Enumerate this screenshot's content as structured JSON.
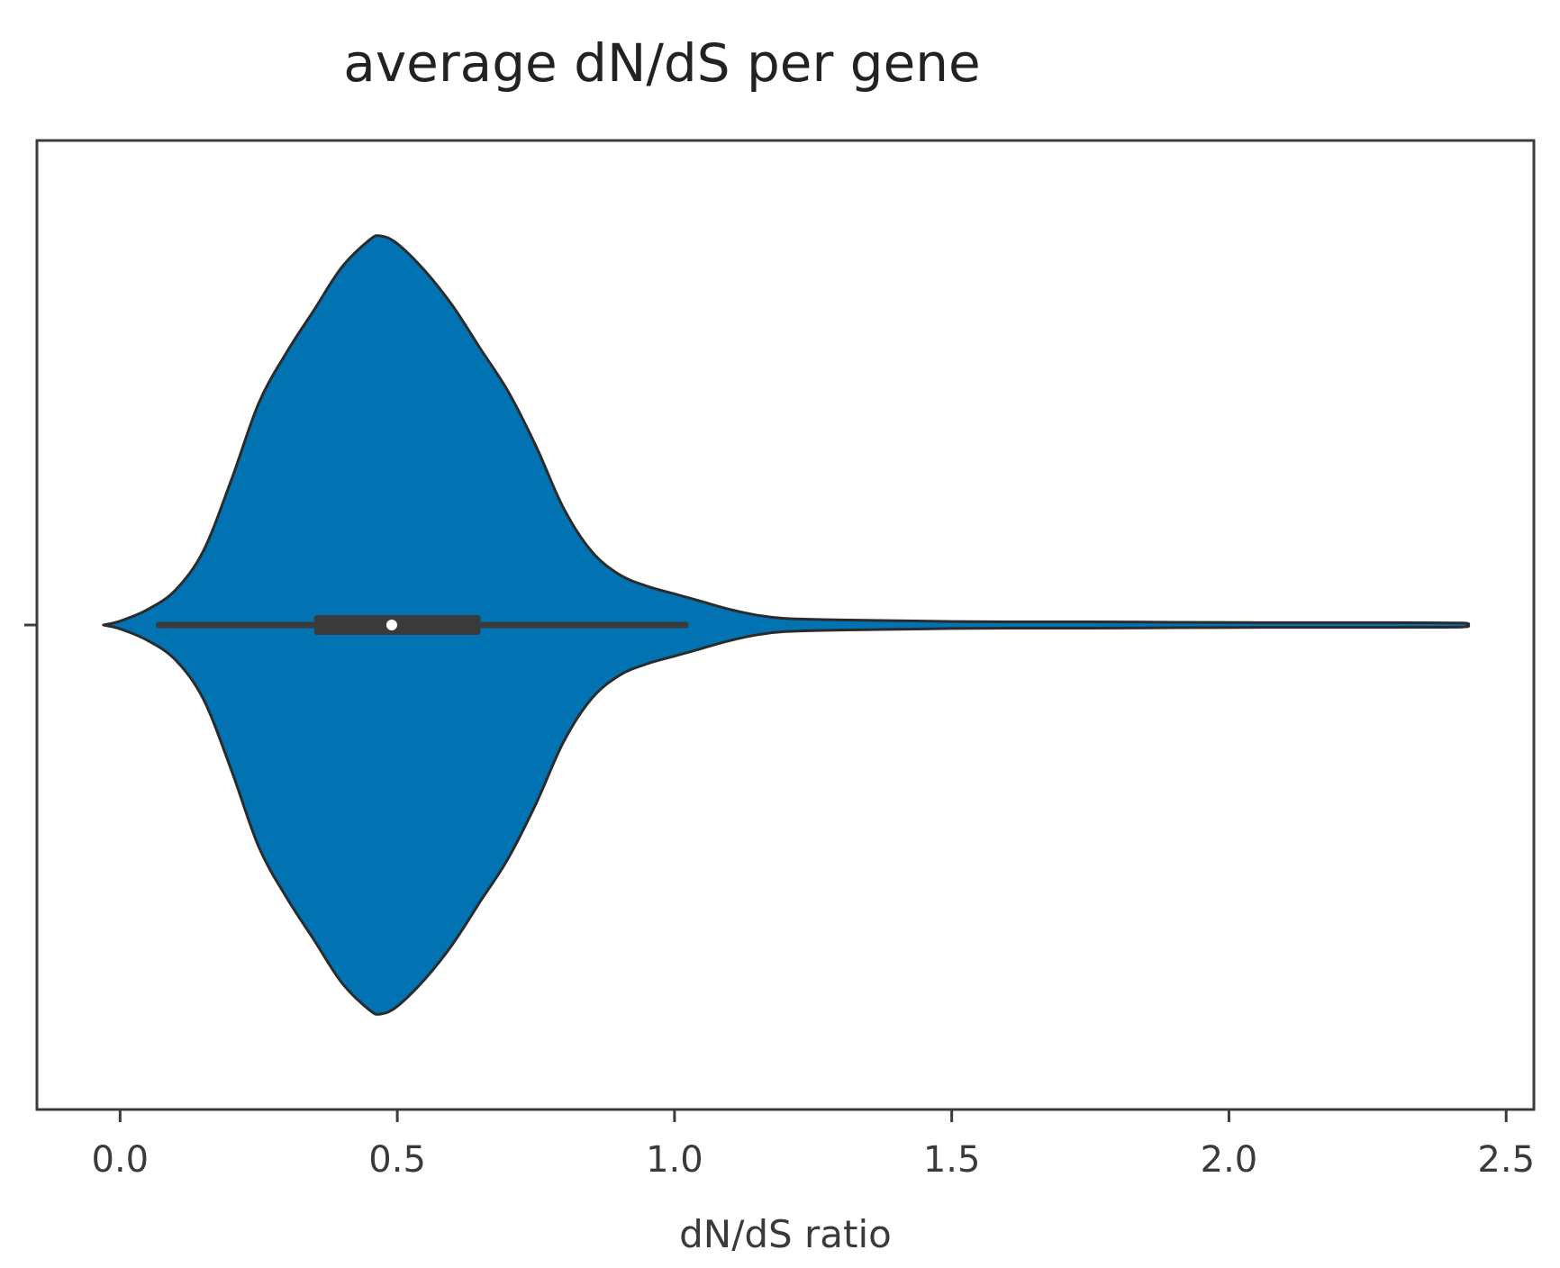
{
  "chart_data": {
    "type": "violin",
    "title": "average dN/dS per gene",
    "xlabel": "dN/dS ratio",
    "ylabel": "",
    "xlim": [
      -0.15,
      2.55
    ],
    "xticks": [
      {
        "value": 0.0,
        "label": "0.0"
      },
      {
        "value": 0.5,
        "label": "0.5"
      },
      {
        "value": 1.0,
        "label": "1.0"
      },
      {
        "value": 1.5,
        "label": "1.5"
      },
      {
        "value": 2.0,
        "label": "2.0"
      },
      {
        "value": 2.5,
        "label": "2.5"
      }
    ],
    "grid": false,
    "fill_color": "#0173b2",
    "outline_color": "#2b2b2b",
    "density_profile": [
      {
        "x": -0.03,
        "d": 0.0
      },
      {
        "x": 0.0,
        "d": 0.01
      },
      {
        "x": 0.05,
        "d": 0.04
      },
      {
        "x": 0.1,
        "d": 0.09
      },
      {
        "x": 0.15,
        "d": 0.19
      },
      {
        "x": 0.2,
        "d": 0.37
      },
      {
        "x": 0.25,
        "d": 0.57
      },
      {
        "x": 0.3,
        "d": 0.7
      },
      {
        "x": 0.35,
        "d": 0.81
      },
      {
        "x": 0.4,
        "d": 0.92
      },
      {
        "x": 0.45,
        "d": 0.99
      },
      {
        "x": 0.47,
        "d": 1.0
      },
      {
        "x": 0.5,
        "d": 0.98
      },
      {
        "x": 0.55,
        "d": 0.91
      },
      {
        "x": 0.6,
        "d": 0.82
      },
      {
        "x": 0.65,
        "d": 0.71
      },
      {
        "x": 0.7,
        "d": 0.6
      },
      {
        "x": 0.75,
        "d": 0.46
      },
      {
        "x": 0.8,
        "d": 0.3
      },
      {
        "x": 0.85,
        "d": 0.19
      },
      {
        "x": 0.9,
        "d": 0.13
      },
      {
        "x": 0.95,
        "d": 0.1
      },
      {
        "x": 1.0,
        "d": 0.08
      },
      {
        "x": 1.05,
        "d": 0.06
      },
      {
        "x": 1.1,
        "d": 0.04
      },
      {
        "x": 1.15,
        "d": 0.025
      },
      {
        "x": 1.2,
        "d": 0.017
      },
      {
        "x": 1.3,
        "d": 0.013
      },
      {
        "x": 1.4,
        "d": 0.011
      },
      {
        "x": 1.5,
        "d": 0.009
      },
      {
        "x": 1.6,
        "d": 0.008
      },
      {
        "x": 1.75,
        "d": 0.008
      },
      {
        "x": 1.9,
        "d": 0.007
      },
      {
        "x": 2.1,
        "d": 0.006
      },
      {
        "x": 2.3,
        "d": 0.006
      },
      {
        "x": 2.42,
        "d": 0.005
      },
      {
        "x": 2.43,
        "d": 0.0
      }
    ],
    "box": {
      "whisker_low": 0.07,
      "q1": 0.35,
      "median": 0.49,
      "q3": 0.65,
      "whisker_high": 1.02
    }
  }
}
